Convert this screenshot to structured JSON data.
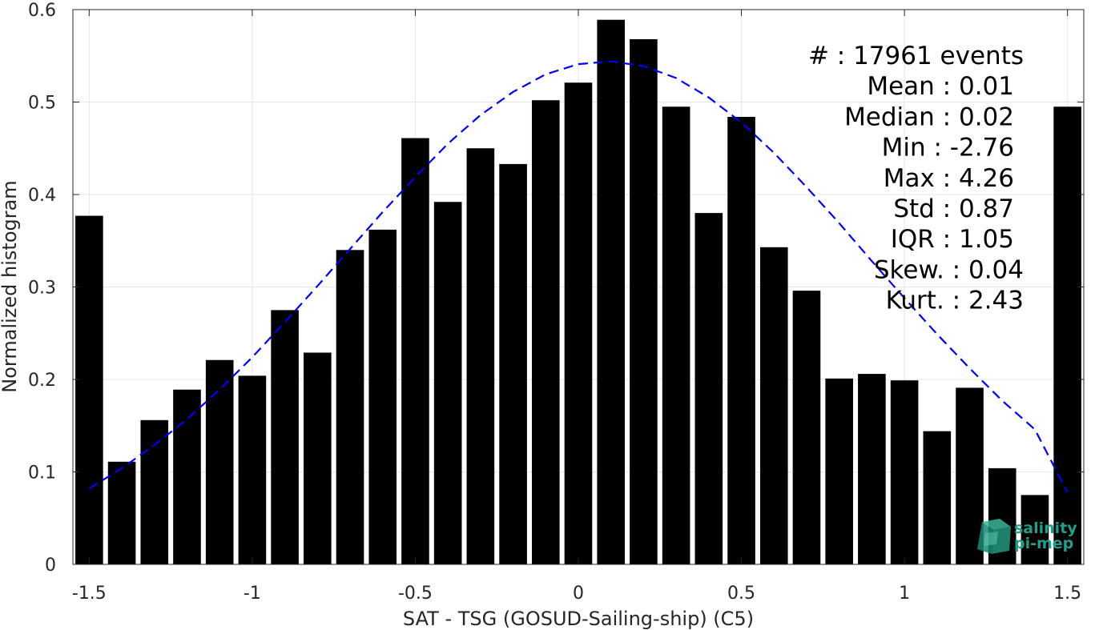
{
  "chart_data": {
    "type": "bar",
    "xlabel": "SAT - TSG (GOSUD-Sailing-ship) (C5)",
    "ylabel": "Normalized histogram",
    "xlim": [
      -1.55,
      1.55
    ],
    "ylim": [
      0,
      0.6
    ],
    "grid": true,
    "x_ticks": [
      -1.5,
      -1,
      -0.5,
      0,
      0.5,
      1,
      1.5
    ],
    "x_tick_labels": [
      "-1.5",
      "-1",
      "-0.5",
      "0",
      "0.5",
      "1",
      "1.5"
    ],
    "y_ticks": [
      0,
      0.1,
      0.2,
      0.3,
      0.4,
      0.5,
      0.6
    ],
    "y_tick_labels": [
      "0",
      "0.1",
      "0.2",
      "0.3",
      "0.4",
      "0.5",
      "0.6"
    ],
    "bar_color": "#000000",
    "bar_width": 0.085,
    "bars": {
      "x": [
        -1.5,
        -1.4,
        -1.3,
        -1.2,
        -1.1,
        -1.0,
        -0.9,
        -0.8,
        -0.7,
        -0.6,
        -0.5,
        -0.4,
        -0.3,
        -0.2,
        -0.1,
        0.0,
        0.1,
        0.2,
        0.3,
        0.4,
        0.5,
        0.6,
        0.7,
        0.8,
        0.9,
        1.0,
        1.1,
        1.2,
        1.3,
        1.4,
        1.5
      ],
      "values": [
        0.377,
        0.111,
        0.156,
        0.189,
        0.221,
        0.204,
        0.275,
        0.229,
        0.34,
        0.362,
        0.461,
        0.392,
        0.45,
        0.433,
        0.502,
        0.521,
        0.589,
        0.568,
        0.495,
        0.38,
        0.484,
        0.343,
        0.296,
        0.201,
        0.206,
        0.199,
        0.144,
        0.191,
        0.104,
        0.075,
        0.495
      ]
    },
    "fit_curve": {
      "style": "dashed",
      "color": "#0000ff",
      "x": [
        -1.5,
        -1.4,
        -1.3,
        -1.2,
        -1.1,
        -1.0,
        -0.9,
        -0.8,
        -0.7,
        -0.6,
        -0.5,
        -0.4,
        -0.3,
        -0.2,
        -0.1,
        0.0,
        0.1,
        0.2,
        0.3,
        0.4,
        0.5,
        0.6,
        0.7,
        0.8,
        0.9,
        1.0,
        1.1,
        1.2,
        1.3,
        1.4,
        1.5
      ],
      "values": [
        0.082,
        0.104,
        0.129,
        0.157,
        0.189,
        0.224,
        0.262,
        0.301,
        0.341,
        0.381,
        0.419,
        0.455,
        0.486,
        0.511,
        0.53,
        0.541,
        0.544,
        0.539,
        0.526,
        0.505,
        0.478,
        0.445,
        0.408,
        0.369,
        0.328,
        0.288,
        0.249,
        0.212,
        0.177,
        0.146,
        0.078
      ]
    },
    "stats": [
      {
        "label": "#  : 17961 events"
      },
      {
        "label": "Mean : 0.01"
      },
      {
        "label": "Median : 0.02"
      },
      {
        "label": "Min : -2.76"
      },
      {
        "label": "Max : 4.26"
      },
      {
        "label": "Std : 0.87"
      },
      {
        "label": "IQR : 1.05"
      },
      {
        "label": "Skew. : 0.04"
      },
      {
        "label": "Kurt. : 2.43"
      }
    ]
  },
  "logo": {
    "line1": "salinity",
    "line2": "pi-mep",
    "color": "#1f9e89"
  }
}
